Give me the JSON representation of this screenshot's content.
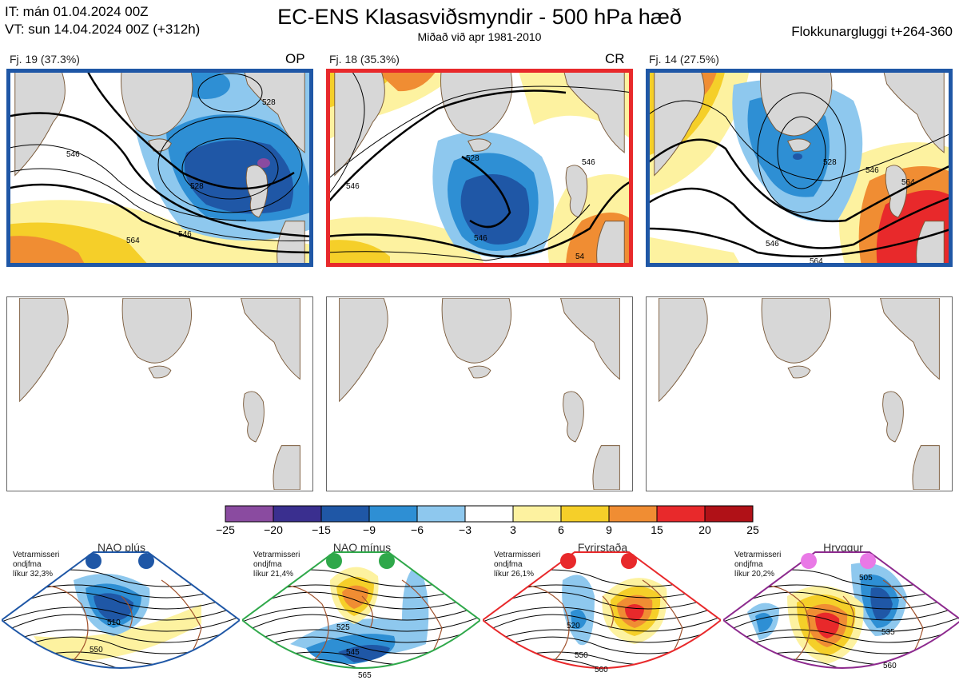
{
  "header": {
    "it": "IT: mán 01.04.2024 00Z",
    "vt": "VT: sun 14.04.2024 00Z  (+312h)",
    "title": "EC-ENS Klasasviðsmyndir - 500 hPa hæð",
    "subtitle": "Miðað við apr 1981-2010",
    "window": "Flokkunargluggi t+264-360"
  },
  "clusters": [
    {
      "label": "Fj. 19 (37.3%)",
      "tag": "OP",
      "frame_color": "#1f57a6",
      "contours": [
        "528",
        "546",
        "564",
        "546",
        "528"
      ]
    },
    {
      "label": "Fj. 18 (35.3%)",
      "tag": "CR",
      "frame_color": "#e8292b",
      "contours": [
        "528",
        "546",
        "546",
        "546",
        "54"
      ]
    },
    {
      "label": "Fj. 14 (27.5%)",
      "tag": "",
      "frame_color": "#1f57a6",
      "contours": [
        "528",
        "546",
        "564",
        "546",
        "564"
      ]
    }
  ],
  "colorbar": {
    "ticks": [
      "−25",
      "−20",
      "−15",
      "−9",
      "−6",
      "−3",
      "3",
      "6",
      "9",
      "15",
      "20",
      "25"
    ],
    "colors": [
      "#8a4ba0",
      "#3a2f8f",
      "#1f57a6",
      "#2e8fd4",
      "#8ec8ee",
      "#ffffff",
      "#fdf2a0",
      "#f5cf29",
      "#f08d33",
      "#e8292b",
      "#b01117"
    ]
  },
  "regimes": [
    {
      "title": "NAO plús",
      "text": [
        "Vetrarmisseri",
        "ondjfma",
        "líkur 32,3%"
      ],
      "color": "#1f57a6",
      "dot": "#1f57a6",
      "contours": [
        "510",
        "550"
      ]
    },
    {
      "title": "NAO mínus",
      "text": [
        "Vetrarmisseri",
        "ondjfma",
        "líkur 21,4%"
      ],
      "color": "#2fa84a",
      "dot": "#2fa84a",
      "contours": [
        "525",
        "545",
        "565"
      ]
    },
    {
      "title": "Fyrirstaða",
      "text": [
        "Vetrarmisseri",
        "ondjfma",
        "líkur 26,1%"
      ],
      "color": "#e8292b",
      "dot": "#e8292b",
      "contours": [
        "520",
        "550",
        "560"
      ]
    },
    {
      "title": "Hryggur",
      "text": [
        "Vetrarmisseri",
        "ondjfma",
        "líkur 20,2%"
      ],
      "color": "#8d2a8e",
      "dot": "#e979e6",
      "contours": [
        "505",
        "535",
        "560"
      ]
    }
  ]
}
